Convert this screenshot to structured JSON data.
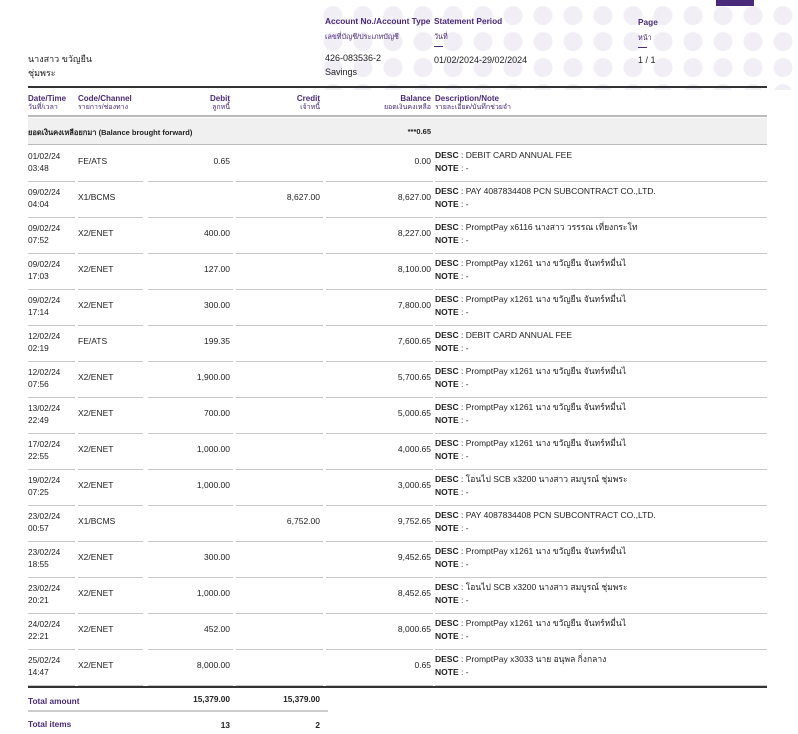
{
  "header": {
    "account_label": "Account No./Account Type",
    "account_label_th": "เลขที่บัญชี/ประเภทบัญชี",
    "period_label": "Statement Period",
    "period_label_th": "วันที่",
    "page_label": "Page",
    "page_label_th": "หน้า",
    "customer_name": "นางสาว ขวัญยืน",
    "customer_name_2": "ชุ่มพระ",
    "account_no": "426-083536-2",
    "account_type": "Savings",
    "period": "01/02/2024-29/02/2024",
    "page": "1 / 1"
  },
  "columns": {
    "date_en": "Date/Time",
    "date_th": "วันที่/เวลา",
    "code_en": "Code/Channel",
    "code_th": "รายการ/ช่องทาง",
    "debit_en": "Debit",
    "debit_th": "ลูกหนี้",
    "credit_en": "Credit",
    "credit_th": "เจ้าหนี้",
    "balance_en": "Balance",
    "balance_th": "ยอดเงินคงเหลือ",
    "desc_en": "Description/Note",
    "desc_th": "รายละเอียด/บันทึกช่วยจำ"
  },
  "brought_forward": {
    "label": "ยอดเงินคงเหลือยกมา  (Balance brought forward)",
    "balance": "***0.65"
  },
  "desc_label": "DESC",
  "note_label": "NOTE",
  "rows": [
    {
      "date": "01/02/24",
      "time": "03:48",
      "code": "FE/ATS",
      "debit": "0.65",
      "credit": "",
      "balance": "0.00",
      "desc": ": DEBIT CARD ANNUAL FEE",
      "note": ": -"
    },
    {
      "date": "09/02/24",
      "time": "04:04",
      "code": "X1/BCMS",
      "debit": "",
      "credit": "8,627.00",
      "balance": "8,627.00",
      "desc": ":  PAY 4087834408 PCN SUBCONTRACT CO.,LTD.",
      "note": ": -"
    },
    {
      "date": "09/02/24",
      "time": "07:52",
      "code": "X2/ENET",
      "debit": "400.00",
      "credit": "",
      "balance": "8,227.00",
      "desc": ": PromptPay x6116 นางสาว วรรรณ เที่ยงกระโท",
      "note": ": -"
    },
    {
      "date": "09/02/24",
      "time": "17:03",
      "code": "X2/ENET",
      "debit": "127.00",
      "credit": "",
      "balance": "8,100.00",
      "desc": ": PromptPay x1261 นาง ขวัญยืน จันทร์หมื่นไ",
      "note": ": -"
    },
    {
      "date": "09/02/24",
      "time": "17:14",
      "code": "X2/ENET",
      "debit": "300.00",
      "credit": "",
      "balance": "7,800.00",
      "desc": ": PromptPay x1261 นาง ขวัญยืน จันทร์หมื่นไ",
      "note": ": -"
    },
    {
      "date": "12/02/24",
      "time": "02:19",
      "code": "FE/ATS",
      "debit": "199.35",
      "credit": "",
      "balance": "7,600.65",
      "desc": ": DEBIT CARD ANNUAL FEE",
      "note": ": -"
    },
    {
      "date": "12/02/24",
      "time": "07:56",
      "code": "X2/ENET",
      "debit": "1,900.00",
      "credit": "",
      "balance": "5,700.65",
      "desc": ": PromptPay x1261 นาง ขวัญยืน จันทร์หมื่นไ",
      "note": ": -"
    },
    {
      "date": "13/02/24",
      "time": "22:49",
      "code": "X2/ENET",
      "debit": "700.00",
      "credit": "",
      "balance": "5,000.65",
      "desc": ": PromptPay x1261 นาง ขวัญยืน จันทร์หมื่นไ",
      "note": ": -"
    },
    {
      "date": "17/02/24",
      "time": "22:55",
      "code": "X2/ENET",
      "debit": "1,000.00",
      "credit": "",
      "balance": "4,000.65",
      "desc": ": PromptPay x1261 นาง ขวัญยืน จันทร์หมื่นไ",
      "note": ": -"
    },
    {
      "date": "19/02/24",
      "time": "07:25",
      "code": "X2/ENET",
      "debit": "1,000.00",
      "credit": "",
      "balance": "3,000.65",
      "desc": ": โอนไป SCB x3200 นางสาว สมบูรณ์ ชุ่มพระ",
      "note": ": -"
    },
    {
      "date": "23/02/24",
      "time": "00:57",
      "code": "X1/BCMS",
      "debit": "",
      "credit": "6,752.00",
      "balance": "9,752.65",
      "desc": ":  PAY 4087834408 PCN SUBCONTRACT CO.,LTD.",
      "note": ": -"
    },
    {
      "date": "23/02/24",
      "time": "18:55",
      "code": "X2/ENET",
      "debit": "300.00",
      "credit": "",
      "balance": "9,452.65",
      "desc": ": PromptPay x1261 นาง ขวัญยืน จันทร์หมื่นไ",
      "note": ": -"
    },
    {
      "date": "23/02/24",
      "time": "20:21",
      "code": "X2/ENET",
      "debit": "1,000.00",
      "credit": "",
      "balance": "8,452.65",
      "desc": ": โอนไป SCB x3200 นางสาว สมบูรณ์ ชุ่มพระ",
      "note": ": -"
    },
    {
      "date": "24/02/24",
      "time": "22:21",
      "code": "X2/ENET",
      "debit": "452.00",
      "credit": "",
      "balance": "8,000.65",
      "desc": ": PromptPay x1261 นาง ขวัญยืน จันทร์หมื่นไ",
      "note": ": -"
    },
    {
      "date": "25/02/24",
      "time": "14:47",
      "code": "X2/ENET",
      "debit": "8,000.00",
      "credit": "",
      "balance": "0.65",
      "desc": ": PromptPay x3033 นาย อนุพล กิ่งกลาง",
      "note": ": -"
    }
  ],
  "totals": {
    "amount_label": "Total amount",
    "amount_debit": "15,379.00",
    "amount_credit": "15,379.00",
    "items_label": "Total items",
    "items_debit": "13",
    "items_credit": "2"
  },
  "colors": {
    "accent": "#4a2a7a"
  }
}
